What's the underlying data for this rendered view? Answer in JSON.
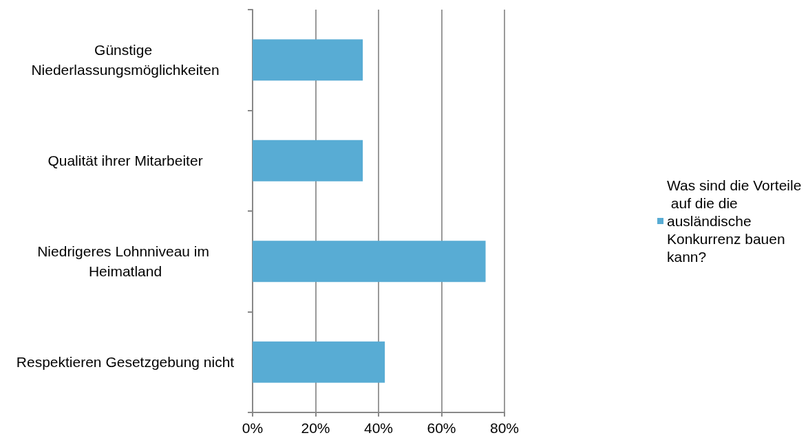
{
  "chart_data": {
    "type": "bar",
    "orientation": "horizontal",
    "categories": [
      "Günstige Niederlassungsmöglichkeiten",
      "Qualität ihrer Mitarbeiter",
      "Niedrigeres Lohnniveau im Heimatland",
      "Respektieren Gesetzgebung nicht"
    ],
    "series": [
      {
        "name": "Was sind die Vorteile auf die die ausländische Konkurrenz bauen kann?",
        "color": "#58acd4",
        "values": [
          35,
          35,
          74,
          42
        ]
      }
    ],
    "xlim": [
      0,
      80
    ],
    "xticks": [
      {
        "value": 0,
        "label": "0%"
      },
      {
        "value": 20,
        "label": "20%"
      },
      {
        "value": 40,
        "label": "40%"
      },
      {
        "value": 60,
        "label": "60%"
      },
      {
        "value": 80,
        "label": "80%"
      }
    ],
    "grid": "x",
    "legend": "right"
  }
}
